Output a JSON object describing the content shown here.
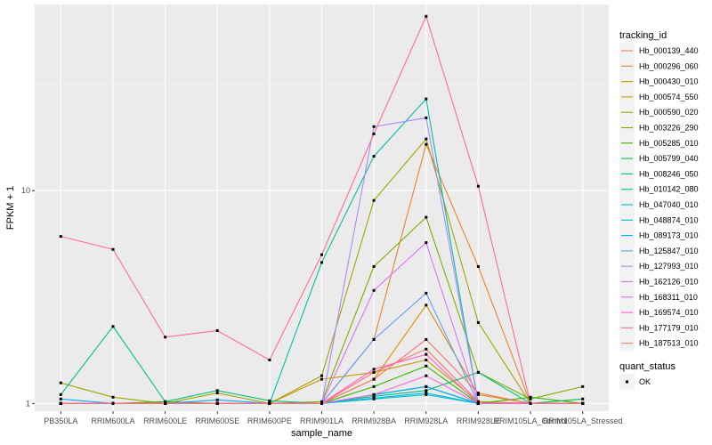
{
  "chart_data": {
    "type": "line",
    "xlabel": "sample_name",
    "ylabel": "FPKM + 1",
    "y_scale": "log10",
    "ylim": [
      0.92,
      75
    ],
    "y_ticks": [
      {
        "value": 1,
        "label": "1"
      },
      {
        "value": 10,
        "label": "10"
      }
    ],
    "categories": [
      "PB350LA",
      "RRIM600LA",
      "RRIM600LE",
      "RRIM600SE",
      "RRIM600PE",
      "RRIM901LA",
      "RRIM928BA",
      "RRIM928LA",
      "RRIM928LE",
      "RRIM105LA_Control",
      "RRIM105LA_Stressed"
    ],
    "grid": true,
    "background": "#EBEBEB",
    "series": [
      {
        "name": "Hb_000139_440",
        "color": "#F8766D",
        "values": [
          1.0,
          1.0,
          1.0,
          1.0,
          1.0,
          1.0,
          1.4,
          1.8,
          1.02,
          1.0,
          1.0
        ]
      },
      {
        "name": "Hb_000296_060",
        "color": "#EA8331",
        "values": [
          1.0,
          1.0,
          1.0,
          1.0,
          1.0,
          1.0,
          2.0,
          16.5,
          4.4,
          1.0,
          1.0
        ]
      },
      {
        "name": "Hb_000430_010",
        "color": "#D89000",
        "values": [
          1.0,
          1.0,
          1.0,
          1.0,
          1.0,
          1.0,
          1.3,
          2.9,
          1.1,
          1.0,
          1.0
        ]
      },
      {
        "name": "Hb_000574_550",
        "color": "#C09B00",
        "values": [
          1.0,
          1.0,
          1.0,
          1.0,
          1.0,
          1.3,
          1.4,
          1.6,
          1.02,
          1.0,
          1.0
        ]
      },
      {
        "name": "Hb_000590_020",
        "color": "#A3A500",
        "values": [
          1.25,
          1.07,
          1.0,
          1.12,
          1.0,
          1.35,
          9.0,
          17.5,
          2.4,
          1.0,
          1.0
        ]
      },
      {
        "name": "Hb_003226_290",
        "color": "#7CAE00",
        "values": [
          1.0,
          1.0,
          1.0,
          1.0,
          1.0,
          1.02,
          4.4,
          7.5,
          1.4,
          1.05,
          1.2
        ]
      },
      {
        "name": "Hb_005285_010",
        "color": "#39B600",
        "values": [
          1.0,
          1.0,
          1.02,
          1.0,
          1.0,
          1.0,
          1.2,
          1.5,
          1.0,
          1.07,
          1.0
        ]
      },
      {
        "name": "Hb_005799_040",
        "color": "#00BB4E",
        "values": [
          1.0,
          1.0,
          1.0,
          1.0,
          1.0,
          1.0,
          1.1,
          1.2,
          1.0,
          1.0,
          1.05
        ]
      },
      {
        "name": "Hb_008246_050",
        "color": "#00BF7D",
        "values": [
          1.1,
          2.3,
          1.02,
          1.15,
          1.03,
          1.0,
          1.08,
          1.15,
          1.4,
          1.0,
          1.0
        ]
      },
      {
        "name": "Hb_010142_080",
        "color": "#00C1A3",
        "values": [
          1.0,
          1.0,
          1.0,
          1.0,
          1.0,
          4.6,
          14.5,
          27.0,
          1.0,
          1.0,
          1.0
        ]
      },
      {
        "name": "Hb_047040_010",
        "color": "#00BFC4",
        "values": [
          1.0,
          1.0,
          1.0,
          1.0,
          1.0,
          1.0,
          1.05,
          1.1,
          1.0,
          1.0,
          1.0
        ]
      },
      {
        "name": "Hb_048874_010",
        "color": "#00B8E7",
        "values": [
          1.0,
          1.0,
          1.0,
          1.0,
          1.0,
          1.0,
          1.06,
          1.12,
          1.0,
          1.0,
          1.0
        ]
      },
      {
        "name": "Hb_089173_010",
        "color": "#00A9FF",
        "values": [
          1.05,
          1.0,
          1.0,
          1.04,
          1.0,
          1.0,
          1.1,
          1.2,
          1.0,
          1.0,
          1.0
        ]
      },
      {
        "name": "Hb_125847_010",
        "color": "#619CFF",
        "values": [
          1.0,
          1.0,
          1.0,
          1.0,
          1.0,
          1.0,
          2.0,
          3.3,
          1.0,
          1.0,
          1.0
        ]
      },
      {
        "name": "Hb_127993_010",
        "color": "#AE87FF",
        "values": [
          1.0,
          1.0,
          1.0,
          1.0,
          1.0,
          1.0,
          20.0,
          22.0,
          1.0,
          1.0,
          1.0
        ]
      },
      {
        "name": "Hb_162126_010",
        "color": "#DB72FB",
        "values": [
          1.0,
          1.0,
          1.0,
          1.0,
          1.0,
          1.0,
          3.4,
          5.7,
          1.0,
          1.0,
          1.0
        ]
      },
      {
        "name": "Hb_168311_010",
        "color": "#F564E3",
        "values": [
          1.0,
          1.0,
          1.0,
          1.0,
          1.0,
          1.0,
          1.1,
          1.35,
          1.0,
          1.0,
          1.0
        ]
      },
      {
        "name": "Hb_169574_010",
        "color": "#FF61C3",
        "values": [
          1.0,
          1.0,
          1.0,
          1.0,
          1.0,
          1.0,
          1.45,
          1.7,
          1.0,
          1.0,
          1.0
        ]
      },
      {
        "name": "Hb_177179_010",
        "color": "#FF6C91",
        "values": [
          6.1,
          5.3,
          2.05,
          2.2,
          1.6,
          5.0,
          18.5,
          66.0,
          10.5,
          1.0,
          1.0
        ]
      },
      {
        "name": "Hb_187513_010",
        "color": "#F8766D",
        "values": [
          1.0,
          1.0,
          1.0,
          1.0,
          1.0,
          1.0,
          1.3,
          2.0,
          1.12,
          1.0,
          1.0
        ]
      }
    ],
    "legend": {
      "placement": "right",
      "title": "tracking_id",
      "entries": [
        "Hb_000139_440",
        "Hb_000296_060",
        "Hb_000430_010",
        "Hb_000574_550",
        "Hb_000590_020",
        "Hb_003226_290",
        "Hb_005285_010",
        "Hb_005799_040",
        "Hb_008246_050",
        "Hb_010142_080",
        "Hb_047040_010",
        "Hb_048874_010",
        "Hb_089173_010",
        "Hb_125847_010",
        "Hb_127993_010",
        "Hb_162126_010",
        "Hb_168311_010",
        "Hb_169574_010",
        "Hb_177179_010",
        "Hb_187513_010"
      ]
    },
    "shape_legend": {
      "title": "quant_status",
      "entries": [
        "OK"
      ]
    }
  }
}
